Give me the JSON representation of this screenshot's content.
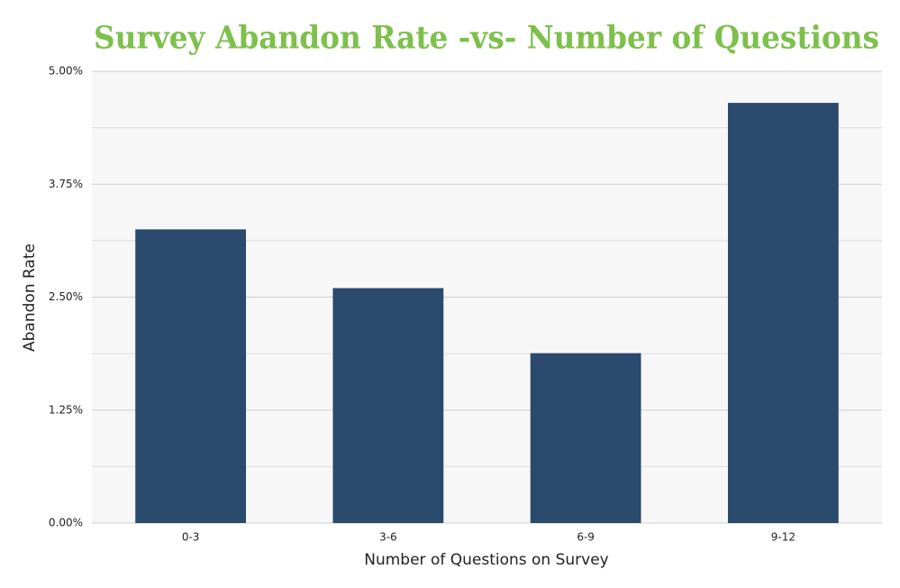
{
  "chart_data": {
    "type": "bar",
    "title": "Survey Abandon Rate -vs- Number of Questions",
    "x_label": "Number of Questions on Survey",
    "y_label": "Abandon Rate",
    "categories": [
      "0-3",
      "3-6",
      "6-9",
      "9-12"
    ],
    "values": [
      3.25,
      2.6,
      1.88,
      4.65
    ],
    "color": "#2a4a6e",
    "ylim": [
      0,
      5
    ],
    "yticks": [
      {
        "value": 0,
        "label": "0.00%"
      },
      {
        "value": 1.25,
        "label": "1.25%"
      },
      {
        "value": 2.5,
        "label": "2.50%"
      },
      {
        "value": 3.75,
        "label": "3.75%"
      },
      {
        "value": 5,
        "label": "5.00%"
      }
    ],
    "minor_yticks": [
      0.625,
      1.875,
      3.125,
      4.375
    ],
    "grid": true
  }
}
